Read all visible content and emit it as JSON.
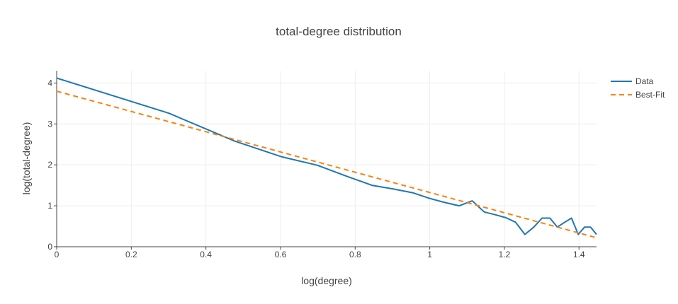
{
  "chart_data": {
    "type": "line",
    "title": "total-degree distribution",
    "xlabel": "log(degree)",
    "ylabel": "log(total-degree)",
    "xlim": [
      0,
      1.447
    ],
    "ylim": [
      0,
      4.3
    ],
    "xticks": [
      0,
      0.2,
      0.4,
      0.6,
      0.8,
      1,
      1.2,
      1.4
    ],
    "xtick_labels": [
      "0",
      "0.2",
      "0.4",
      "0.6",
      "0.8",
      "1",
      "1.2",
      "1.4"
    ],
    "yticks": [
      0,
      1,
      2,
      3,
      4
    ],
    "ytick_labels": [
      "0",
      "1",
      "2",
      "3",
      "4"
    ],
    "grid": true,
    "legend_position": "top-right",
    "series": [
      {
        "name": "Data",
        "color": "#1f77b4",
        "style": "solid",
        "x": [
          0,
          0.301,
          0.477,
          0.602,
          0.699,
          0.778,
          0.845,
          0.903,
          0.954,
          1.0,
          1.041,
          1.079,
          1.114,
          1.146,
          1.176,
          1.204,
          1.23,
          1.255,
          1.279,
          1.301,
          1.322,
          1.342,
          1.362,
          1.38,
          1.398,
          1.415,
          1.431,
          1.447
        ],
        "y": [
          4.12,
          3.26,
          2.58,
          2.2,
          1.99,
          1.72,
          1.5,
          1.41,
          1.32,
          1.18,
          1.08,
          1.0,
          1.12,
          0.85,
          0.78,
          0.71,
          0.6,
          0.3,
          0.48,
          0.7,
          0.7,
          0.48,
          0.6,
          0.7,
          0.3,
          0.48,
          0.48,
          0.3
        ]
      },
      {
        "name": "Best-Fit",
        "color": "#ff7f0e",
        "style": "dashed",
        "x": [
          0,
          1.447
        ],
        "y": [
          3.8,
          0.22
        ]
      }
    ]
  }
}
